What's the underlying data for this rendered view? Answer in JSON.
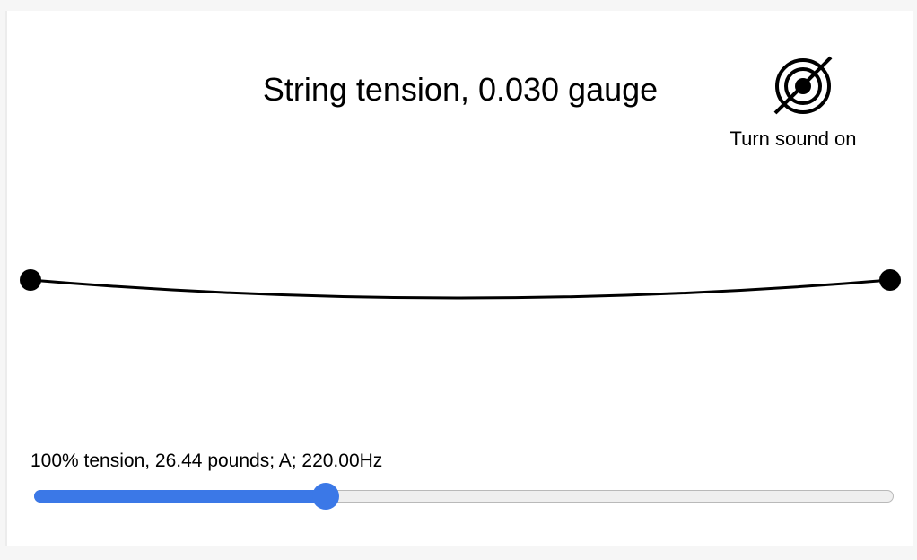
{
  "title": "String tension, 0.030 gauge",
  "sound": {
    "label": "Turn sound on",
    "icon": "sound-off-icon",
    "enabled": false
  },
  "readout": {
    "text": "100% tension, 26.44 pounds; A; 220.00Hz",
    "tension_percent": 100,
    "pounds": 26.44,
    "note": "A",
    "frequency_hz": 220.0
  },
  "slider": {
    "value_fraction": 0.34
  },
  "colors": {
    "accent": "#3b78e7",
    "string": "#000000",
    "track": "#efefef"
  }
}
